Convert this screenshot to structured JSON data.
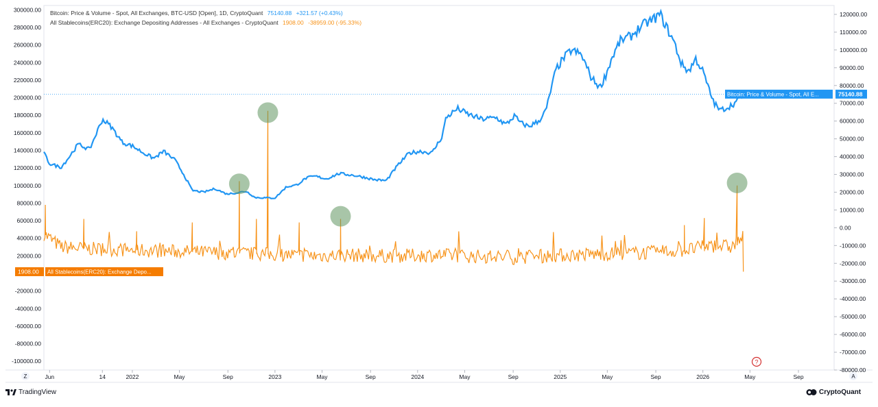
{
  "chart_data": {
    "type": "line",
    "legend": [
      {
        "name": "Bitcoin: Price & Volume - Spot, All Exchanges, BTC-USD [Open], 1D, CryptoQuant",
        "value": "75140.88",
        "change": "+321.57 (+0.43%)",
        "color": "#2196f3",
        "axis": "right"
      },
      {
        "name": "All Stablecoins(ERC20): Exchange Depositing Addresses - All Exchanges - CryptoQuant",
        "value": "1908.00",
        "change": "-38959.00 (-95.33%)",
        "color": "#f7931a",
        "axis": "left"
      }
    ],
    "left_axis": {
      "range": [
        -110000,
        305000
      ],
      "ticks": [
        "300000.00",
        "280000.00",
        "260000.00",
        "240000.00",
        "220000.00",
        "200000.00",
        "180000.00",
        "160000.00",
        "140000.00",
        "120000.00",
        "100000.00",
        "80000.00",
        "60000.00",
        "40000.00",
        "20000.00",
        "-20000.00",
        "-40000.00",
        "-60000.00",
        "-80000.00",
        "-100000.00"
      ],
      "current_label": "1908.00",
      "series_label": "All Stablecoins(ERC20): Exchange Depo..."
    },
    "right_axis": {
      "range": [
        -80000,
        125000
      ],
      "ticks": [
        "120000.00",
        "110000.00",
        "100000.00",
        "90000.00",
        "80000.00",
        "70000.00",
        "60000.00",
        "50000.00",
        "40000.00",
        "30000.00",
        "20000.00",
        "10000.00",
        "0.00",
        "-10000.00",
        "-20000.00",
        "-30000.00",
        "-40000.00",
        "-50000.00",
        "-60000.00",
        "-70000.00",
        "-80000.00"
      ],
      "current_label": "75140.88",
      "series_label": "Bitcoin: Price & Volume - Spot, All E..."
    },
    "x_axis": {
      "start": 2021.38,
      "end": 2026.92,
      "ticks": [
        {
          "label": "Jun",
          "t": 2021.42
        },
        {
          "label": "14",
          "t": 2021.79
        },
        {
          "label": "2022",
          "t": 2022.0
        },
        {
          "label": "May",
          "t": 2022.33
        },
        {
          "label": "Sep",
          "t": 2022.67
        },
        {
          "label": "2023",
          "t": 2023.0
        },
        {
          "label": "May",
          "t": 2023.33
        },
        {
          "label": "Sep",
          "t": 2023.67
        },
        {
          "label": "2024",
          "t": 2024.0
        },
        {
          "label": "May",
          "t": 2024.33
        },
        {
          "label": "Sep",
          "t": 2024.67
        },
        {
          "label": "2025",
          "t": 2025.0
        },
        {
          "label": "May",
          "t": 2025.33
        },
        {
          "label": "Sep",
          "t": 2025.67
        },
        {
          "label": "2026",
          "t": 2026.0
        },
        {
          "label": "May",
          "t": 2026.33
        },
        {
          "label": "Sep",
          "t": 2026.67
        }
      ]
    },
    "btc_price": {
      "t": [
        2021.38,
        2021.42,
        2021.5,
        2021.55,
        2021.62,
        2021.7,
        2021.79,
        2021.85,
        2021.93,
        2022.0,
        2022.08,
        2022.15,
        2022.22,
        2022.3,
        2022.36,
        2022.42,
        2022.5,
        2022.58,
        2022.66,
        2022.72,
        2022.8,
        2022.86,
        2022.94,
        2023.0,
        2023.08,
        2023.15,
        2023.22,
        2023.28,
        2023.36,
        2023.45,
        2023.55,
        2023.62,
        2023.7,
        2023.78,
        2023.86,
        2023.94,
        2024.02,
        2024.1,
        2024.17,
        2024.2,
        2024.28,
        2024.35,
        2024.45,
        2024.55,
        2024.62,
        2024.68,
        2024.72,
        2024.78,
        2024.85,
        2024.9,
        2024.97,
        2025.03,
        2025.08,
        2025.15,
        2025.22,
        2025.28,
        2025.32,
        2025.36,
        2025.42,
        2025.5,
        2025.55,
        2025.6,
        2025.65,
        2025.7,
        2025.75,
        2025.8,
        2025.85,
        2025.9,
        2025.95,
        2026.0,
        2026.05,
        2026.08,
        2026.12,
        2026.18,
        2026.24,
        2026.28
      ],
      "v": [
        42000,
        36000,
        34000,
        39000,
        47000,
        44000,
        61000,
        57000,
        48000,
        46000,
        42000,
        39000,
        43000,
        38000,
        30000,
        21000,
        20000,
        22000,
        19000,
        19500,
        20500,
        17000,
        16800,
        16700,
        23000,
        24000,
        28000,
        29000,
        27500,
        30500,
        29500,
        28500,
        27000,
        26500,
        35000,
        42000,
        43000,
        42000,
        51000,
        62000,
        67000,
        64000,
        61000,
        62000,
        58000,
        63000,
        59000,
        57000,
        60000,
        66000,
        89000,
        96000,
        100000,
        97000,
        84000,
        79000,
        86000,
        95000,
        105000,
        108000,
        112000,
        115000,
        117000,
        120000,
        112000,
        104000,
        92000,
        88000,
        95000,
        88000,
        76000,
        70000,
        66000,
        68000,
        71000,
        75140
      ]
    },
    "stablecoin_addresses": {
      "baseline_t": [
        2021.38,
        2021.5,
        2021.7,
        2021.9,
        2022.1,
        2022.3,
        2022.5,
        2022.7,
        2022.9,
        2023.1,
        2023.3,
        2023.5,
        2023.7,
        2023.9,
        2024.1,
        2024.3,
        2024.5,
        2024.7,
        2024.9,
        2025.1,
        2025.3,
        2025.5,
        2025.7,
        2025.9,
        2026.0,
        2026.1,
        2026.2,
        2026.28
      ],
      "baseline_v": [
        45000,
        30000,
        28000,
        27000,
        26000,
        25000,
        24000,
        23000,
        22000,
        21000,
        20000,
        21000,
        20000,
        20000,
        21000,
        20000,
        19000,
        18000,
        20000,
        21000,
        22000,
        23000,
        24000,
        27000,
        30000,
        32000,
        30000,
        40867
      ],
      "spikes": [
        {
          "t": 2021.39,
          "v": 78000
        },
        {
          "t": 2021.66,
          "v": 62000
        },
        {
          "t": 2022.03,
          "v": 48000
        },
        {
          "t": 2022.42,
          "v": 58000
        },
        {
          "t": 2022.75,
          "v": 105000
        },
        {
          "t": 2022.87,
          "v": 62000
        },
        {
          "t": 2022.95,
          "v": 185000
        },
        {
          "t": 2023.17,
          "v": 58000
        },
        {
          "t": 2023.46,
          "v": 62000
        },
        {
          "t": 2025.87,
          "v": 55000
        },
        {
          "t": 2026.01,
          "v": 63000
        },
        {
          "t": 2026.24,
          "v": 100000
        }
      ],
      "last_value": 1908
    },
    "highlight_circles": [
      {
        "t": 2022.75,
        "axis": "left",
        "v": 102000
      },
      {
        "t": 2022.95,
        "axis": "left",
        "v": 183000
      },
      {
        "t": 2023.46,
        "axis": "left",
        "v": 65000
      },
      {
        "t": 2026.24,
        "axis": "left",
        "v": 103000
      }
    ],
    "price_line_value": 75140.88
  },
  "footer": {
    "left_brand": "TradingView",
    "right_brand": "CryptoQuant"
  },
  "axis_buttons": {
    "left": "Z",
    "right": "A"
  },
  "event_marker": "?"
}
